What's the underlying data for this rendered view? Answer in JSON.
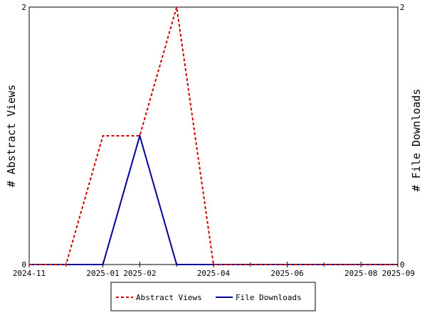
{
  "chart_data": {
    "type": "line",
    "title": "",
    "x_axis": {
      "min": "2024-11",
      "max": "2025-09",
      "ticks": [
        "2024-11",
        "2025-01",
        "2025-02",
        "2025-04",
        "2025-06",
        "2025-08",
        "2025-09"
      ],
      "minor_ticks": [
        "2024-12",
        "2025-03",
        "2025-05",
        "2025-07"
      ]
    },
    "y_left": {
      "label": "# Abstract Views",
      "min": 0,
      "max": 2,
      "ticks": [
        "0",
        "2"
      ]
    },
    "y_right": {
      "label": "# File Downloads",
      "min": 0,
      "max": 2,
      "ticks": [
        "0",
        "2"
      ]
    },
    "grid": false,
    "legend_position": "bottom",
    "series": [
      {
        "name": "Abstract Views",
        "axis": "left",
        "color": "#cc0000",
        "dash": "dashed",
        "points": [
          [
            "2024-11",
            0
          ],
          [
            "2024-12",
            0
          ],
          [
            "2025-01",
            1
          ],
          [
            "2025-02",
            1
          ],
          [
            "2025-03",
            2
          ],
          [
            "2025-04",
            0
          ],
          [
            "2025-05",
            0
          ],
          [
            "2025-06",
            0
          ],
          [
            "2025-07",
            0
          ],
          [
            "2025-08",
            0
          ],
          [
            "2025-09",
            0
          ]
        ]
      },
      {
        "name": "File Downloads",
        "axis": "right",
        "color": "#000099",
        "dash": "solid",
        "points": [
          [
            "2024-11",
            0
          ],
          [
            "2024-12",
            0
          ],
          [
            "2025-01",
            0
          ],
          [
            "2025-02",
            1
          ],
          [
            "2025-03",
            0
          ],
          [
            "2025-04",
            0
          ],
          [
            "2025-05",
            0
          ],
          [
            "2025-06",
            0
          ],
          [
            "2025-07",
            0
          ],
          [
            "2025-08",
            0
          ],
          [
            "2025-09",
            0
          ]
        ]
      }
    ]
  }
}
